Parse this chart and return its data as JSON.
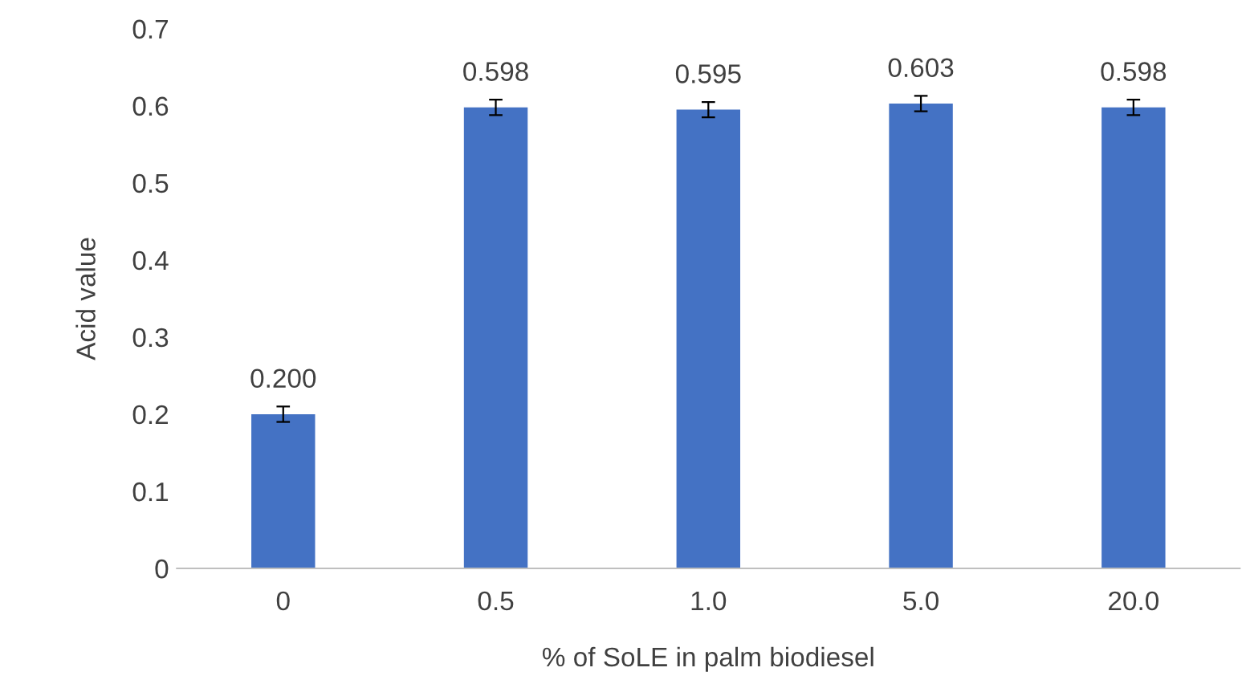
{
  "chart_data": {
    "type": "bar",
    "xlabel": "% of SoLE in palm biodiesel",
    "ylabel": "Acid value",
    "categories": [
      "0",
      "0.5",
      "1.0",
      "5.0",
      "20.0"
    ],
    "values": [
      0.2,
      0.598,
      0.595,
      0.603,
      0.598
    ],
    "errors": [
      0.01,
      0.01,
      0.01,
      0.01,
      0.01
    ],
    "color": "#4472c4",
    "ylim": [
      0,
      0.7
    ],
    "yticks": [
      {
        "value": 0,
        "label": "0"
      },
      0.1,
      0.2,
      0.3,
      0.4,
      0.5,
      0.6,
      0.7
    ],
    "grid": false,
    "value_labels": [
      "0.200",
      "0.598",
      "0.595",
      "0.603",
      "0.598"
    ]
  }
}
